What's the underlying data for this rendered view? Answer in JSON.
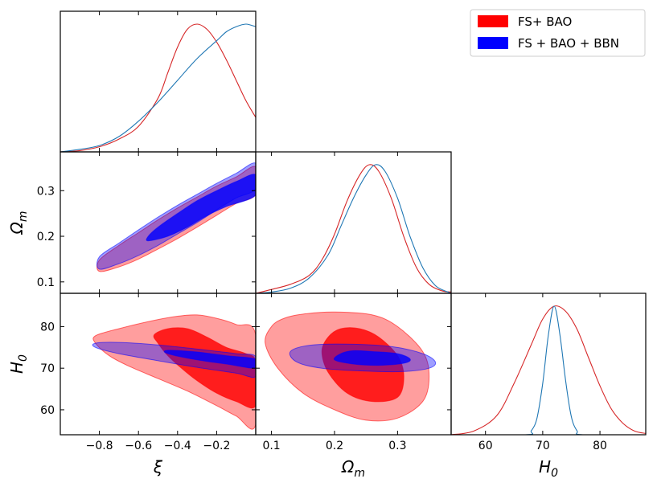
{
  "chart_data": {
    "type": "corner",
    "parameters": [
      {
        "key": "xi",
        "label": "ξ",
        "range": [
          -1.0,
          0.0
        ],
        "ticks": [
          -0.8,
          -0.6,
          -0.4,
          -0.2
        ]
      },
      {
        "key": "om",
        "label": "Ω",
        "sub": "m",
        "range": [
          0.075,
          0.385
        ],
        "ticks": [
          0.1,
          0.2,
          0.3
        ]
      },
      {
        "key": "h0",
        "label": "H",
        "sub": "0",
        "range": [
          54,
          88
        ],
        "ticks": [
          60,
          70,
          80
        ]
      }
    ],
    "tick_labels": {
      "xi": [
        "−0.8",
        "−0.6",
        "−0.4",
        "−0.2"
      ],
      "om": [
        "0.1",
        "0.2",
        "0.3"
      ],
      "h0": [
        "60",
        "70",
        "80"
      ]
    },
    "legend": {
      "position": "top-right",
      "entries": [
        {
          "label": "FS+ BAO",
          "color": "#ff0000"
        },
        {
          "label": "FS + BAO + BBN",
          "color": "#0000ff"
        }
      ]
    },
    "series": [
      {
        "name": "FS+ BAO",
        "color": "#ff0000",
        "line_color": "#d62728",
        "marginals": {
          "xi": [
            [
              -1.0,
              0.0
            ],
            [
              -0.9,
              0.01
            ],
            [
              -0.8,
              0.04
            ],
            [
              -0.7,
              0.1
            ],
            [
              -0.6,
              0.2
            ],
            [
              -0.5,
              0.42
            ],
            [
              -0.45,
              0.62
            ],
            [
              -0.4,
              0.82
            ],
            [
              -0.35,
              0.96
            ],
            [
              -0.3,
              1.0
            ],
            [
              -0.25,
              0.96
            ],
            [
              -0.2,
              0.86
            ],
            [
              -0.15,
              0.72
            ],
            [
              -0.1,
              0.56
            ],
            [
              -0.05,
              0.4
            ],
            [
              0.0,
              0.27
            ]
          ],
          "om": [
            [
              0.075,
              0.0
            ],
            [
              0.1,
              0.03
            ],
            [
              0.13,
              0.07
            ],
            [
              0.16,
              0.14
            ],
            [
              0.18,
              0.26
            ],
            [
              0.2,
              0.46
            ],
            [
              0.22,
              0.72
            ],
            [
              0.24,
              0.92
            ],
            [
              0.255,
              1.0
            ],
            [
              0.27,
              0.95
            ],
            [
              0.29,
              0.74
            ],
            [
              0.31,
              0.44
            ],
            [
              0.33,
              0.2
            ],
            [
              0.35,
              0.07
            ],
            [
              0.37,
              0.02
            ],
            [
              0.385,
              0.01
            ]
          ],
          "h0": [
            [
              54,
              0.0
            ],
            [
              58,
              0.03
            ],
            [
              62,
              0.15
            ],
            [
              65,
              0.4
            ],
            [
              68,
              0.7
            ],
            [
              70,
              0.9
            ],
            [
              72,
              1.0
            ],
            [
              74,
              0.96
            ],
            [
              76,
              0.82
            ],
            [
              78,
              0.6
            ],
            [
              80,
              0.38
            ],
            [
              82,
              0.2
            ],
            [
              84,
              0.09
            ],
            [
              86,
              0.03
            ],
            [
              88,
              0.01
            ]
          ]
        },
        "contours": {
          "om_xi": {
            "outer": [
              [
                -0.8,
                0.123
              ],
              [
                -0.7,
                0.133
              ],
              [
                -0.6,
                0.15
              ],
              [
                -0.5,
                0.172
              ],
              [
                -0.4,
                0.195
              ],
              [
                -0.3,
                0.22
              ],
              [
                -0.2,
                0.246
              ],
              [
                -0.1,
                0.272
              ],
              [
                0.0,
                0.292
              ],
              [
                0.0,
                0.352
              ],
              [
                -0.1,
                0.33
              ],
              [
                -0.2,
                0.31
              ],
              [
                -0.3,
                0.286
              ],
              [
                -0.4,
                0.262
              ],
              [
                -0.5,
                0.236
              ],
              [
                -0.6,
                0.208
              ],
              [
                -0.7,
                0.18
              ],
              [
                -0.8,
                0.148
              ]
            ],
            "inner": []
          },
          "h0_xi": {
            "outer": [
              [
                -0.82,
                76
              ],
              [
                -0.75,
                73
              ],
              [
                -0.65,
                70.5
              ],
              [
                -0.5,
                67.5
              ],
              [
                -0.35,
                64.5
              ],
              [
                -0.2,
                61
              ],
              [
                -0.1,
                58.5
              ],
              [
                0.0,
                56.5
              ],
              [
                0.0,
                78
              ],
              [
                -0.1,
                80.5
              ],
              [
                -0.2,
                82
              ],
              [
                -0.3,
                82.8
              ],
              [
                -0.4,
                82.5
              ],
              [
                -0.55,
                81.2
              ],
              [
                -0.7,
                79.5
              ],
              [
                -0.82,
                77.8
              ]
            ],
            "inner": [
              [
                -0.5,
                76
              ],
              [
                -0.45,
                73
              ],
              [
                -0.38,
                70
              ],
              [
                -0.3,
                67
              ],
              [
                -0.2,
                64
              ],
              [
                -0.1,
                62
              ],
              [
                0.0,
                61
              ],
              [
                0.0,
                71.5
              ],
              [
                -0.05,
                73.5
              ],
              [
                -0.15,
                75
              ],
              [
                -0.25,
                77.5
              ],
              [
                -0.35,
                79.5
              ],
              [
                -0.45,
                79.5
              ],
              [
                -0.52,
                78
              ]
            ]
          },
          "h0_om": {
            "outer": [
              [
                0.1,
                80
              ],
              [
                0.09,
                76
              ],
              [
                0.11,
                70
              ],
              [
                0.15,
                64
              ],
              [
                0.2,
                60
              ],
              [
                0.25,
                57.5
              ],
              [
                0.3,
                58
              ],
              [
                0.34,
                62
              ],
              [
                0.35,
                68
              ],
              [
                0.34,
                74
              ],
              [
                0.3,
                80
              ],
              [
                0.26,
                82.8
              ],
              [
                0.2,
                83.5
              ],
              [
                0.15,
                83
              ],
              [
                0.12,
                82
              ]
            ],
            "inner": [
              [
                0.18,
                74
              ],
              [
                0.19,
                69
              ],
              [
                0.22,
                64
              ],
              [
                0.26,
                62
              ],
              [
                0.3,
                63
              ],
              [
                0.31,
                68
              ],
              [
                0.3,
                73
              ],
              [
                0.27,
                77.5
              ],
              [
                0.24,
                79.5
              ],
              [
                0.21,
                79.5
              ],
              [
                0.19,
                77.5
              ]
            ]
          }
        }
      },
      {
        "name": "FS + BAO + BBN",
        "color": "#0000ff",
        "line_color": "#1f77b4",
        "marginals": {
          "xi": [
            [
              -1.0,
              0.0
            ],
            [
              -0.9,
              0.02
            ],
            [
              -0.8,
              0.05
            ],
            [
              -0.7,
              0.12
            ],
            [
              -0.6,
              0.24
            ],
            [
              -0.5,
              0.39
            ],
            [
              -0.4,
              0.56
            ],
            [
              -0.3,
              0.73
            ],
            [
              -0.2,
              0.87
            ],
            [
              -0.15,
              0.94
            ],
            [
              -0.1,
              0.98
            ],
            [
              -0.05,
              1.0
            ],
            [
              0.0,
              0.98
            ]
          ],
          "om": [
            [
              0.075,
              0.0
            ],
            [
              0.1,
              0.01
            ],
            [
              0.13,
              0.04
            ],
            [
              0.16,
              0.12
            ],
            [
              0.19,
              0.3
            ],
            [
              0.21,
              0.52
            ],
            [
              0.23,
              0.74
            ],
            [
              0.25,
              0.92
            ],
            [
              0.265,
              1.0
            ],
            [
              0.28,
              0.95
            ],
            [
              0.3,
              0.74
            ],
            [
              0.32,
              0.44
            ],
            [
              0.34,
              0.2
            ],
            [
              0.36,
              0.06
            ],
            [
              0.38,
              0.01
            ],
            [
              0.385,
              0.0
            ]
          ],
          "h0": [
            [
              54,
              0.0
            ],
            [
              67,
              0.0
            ],
            [
              68,
              0.03
            ],
            [
              69,
              0.13
            ],
            [
              70,
              0.4
            ],
            [
              71,
              0.78
            ],
            [
              72,
              1.0
            ],
            [
              73,
              0.78
            ],
            [
              74,
              0.42
            ],
            [
              75,
              0.14
            ],
            [
              76,
              0.03
            ],
            [
              77,
              0.0
            ],
            [
              88,
              0.0
            ]
          ]
        },
        "contours": {
          "om_xi": {
            "outer": [
              [
                -0.8,
                0.128
              ],
              [
                -0.7,
                0.14
              ],
              [
                -0.6,
                0.158
              ],
              [
                -0.5,
                0.18
              ],
              [
                -0.4,
                0.205
              ],
              [
                -0.3,
                0.23
              ],
              [
                -0.2,
                0.258
              ],
              [
                -0.1,
                0.284
              ],
              [
                0.0,
                0.305
              ],
              [
                0.0,
                0.36
              ],
              [
                -0.1,
                0.338
              ],
              [
                -0.2,
                0.316
              ],
              [
                -0.3,
                0.292
              ],
              [
                -0.4,
                0.268
              ],
              [
                -0.5,
                0.242
              ],
              [
                -0.6,
                0.214
              ],
              [
                -0.7,
                0.185
              ],
              [
                -0.8,
                0.155
              ]
            ],
            "inner": [
              [
                -0.55,
                0.19
              ],
              [
                -0.45,
                0.2
              ],
              [
                -0.35,
                0.22
              ],
              [
                -0.25,
                0.245
              ],
              [
                -0.15,
                0.265
              ],
              [
                0.0,
                0.29
              ],
              [
                0.0,
                0.335
              ],
              [
                -0.1,
                0.32
              ],
              [
                -0.2,
                0.3
              ],
              [
                -0.3,
                0.278
              ],
              [
                -0.4,
                0.25
              ],
              [
                -0.5,
                0.22
              ],
              [
                -0.55,
                0.2
              ]
            ]
          },
          "h0_xi": {
            "outer": [
              [
                -0.82,
                75
              ],
              [
                -0.7,
                73.5
              ],
              [
                -0.5,
                71.8
              ],
              [
                -0.3,
                70.2
              ],
              [
                -0.1,
                68.8
              ],
              [
                0.0,
                68
              ],
              [
                0.0,
                72.8
              ],
              [
                -0.1,
                73.5
              ],
              [
                -0.3,
                74.6
              ],
              [
                -0.5,
                75.6
              ],
              [
                -0.7,
                76.2
              ],
              [
                -0.82,
                76
              ]
            ],
            "inner": [
              [
                -0.45,
                73.5
              ],
              [
                -0.3,
                72
              ],
              [
                -0.15,
                71
              ],
              [
                0.0,
                70
              ],
              [
                0.0,
                72.2
              ],
              [
                -0.15,
                73
              ],
              [
                -0.3,
                73.9
              ],
              [
                -0.45,
                74.3
              ]
            ]
          },
          "h0_om": {
            "outer": [
              [
                0.13,
                74
              ],
              [
                0.14,
                71.5
              ],
              [
                0.18,
                70
              ],
              [
                0.25,
                69.3
              ],
              [
                0.31,
                69.2
              ],
              [
                0.35,
                70
              ],
              [
                0.36,
                71.5
              ],
              [
                0.34,
                73.5
              ],
              [
                0.29,
                75.2
              ],
              [
                0.22,
                75.8
              ],
              [
                0.16,
                75.5
              ]
            ],
            "inner": [
              [
                0.21,
                73.5
              ],
              [
                0.2,
                72
              ],
              [
                0.23,
                71
              ],
              [
                0.27,
                70.7
              ],
              [
                0.31,
                71.2
              ],
              [
                0.32,
                72.2
              ],
              [
                0.3,
                73.5
              ],
              [
                0.26,
                74
              ],
              [
                0.23,
                74.2
              ]
            ]
          }
        }
      }
    ]
  }
}
